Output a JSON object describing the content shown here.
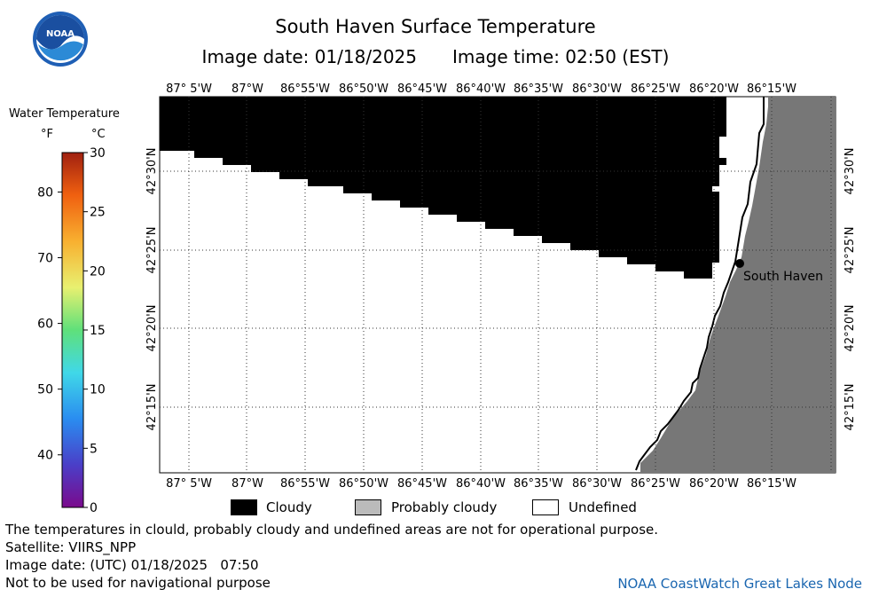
{
  "header": {
    "title": "South Haven Surface Temperature",
    "image_date_label": "Image date: 01/18/2025",
    "image_time_label": "Image time: 02:50 (EST)"
  },
  "logo": {
    "text": "NOAA",
    "icon": "noaa-logo-icon"
  },
  "legend": {
    "title": "Water Temperature",
    "unit_f": "°F",
    "unit_c": "°C",
    "f_ticks": [
      "80",
      "70",
      "60",
      "50",
      "40"
    ],
    "f_values": [
      80,
      70,
      60,
      50,
      40
    ],
    "c_ticks": [
      "30",
      "25",
      "20",
      "15",
      "10",
      "5",
      "0"
    ],
    "c_values": [
      30,
      25,
      20,
      15,
      10,
      5,
      0
    ]
  },
  "map": {
    "lon_labels": [
      "87° 5'W",
      "87°W",
      "86°55'W",
      "86°50'W",
      "86°45'W",
      "86°40'W",
      "86°35'W",
      "86°30'W",
      "86°25'W",
      "86°20'W",
      "86°15'W"
    ],
    "lat_labels": [
      "42°30'N",
      "42°25'N",
      "42°20'N",
      "42°15'N"
    ],
    "place_label": "South Haven",
    "colors": {
      "cloud": "#000000",
      "land": "#777777",
      "undefined": "#ffffff",
      "grid": "#000000"
    }
  },
  "key": {
    "cloudy": "Cloudy",
    "probably_cloudy": "Probably cloudy",
    "undefined": "Undefined",
    "probably_cloudy_color": "#bbbbbb"
  },
  "notes": {
    "disclaimer": "The temperatures in clould, probably cloudy and undefined areas are not for operational purpose.",
    "satellite": "Satellite: VIIRS_NPP",
    "utc_date": "Image date: (UTC) 01/18/2025   07:50",
    "navigation": "Not to be used for navigational purpose"
  },
  "credit": "NOAA CoastWatch Great Lakes Node"
}
